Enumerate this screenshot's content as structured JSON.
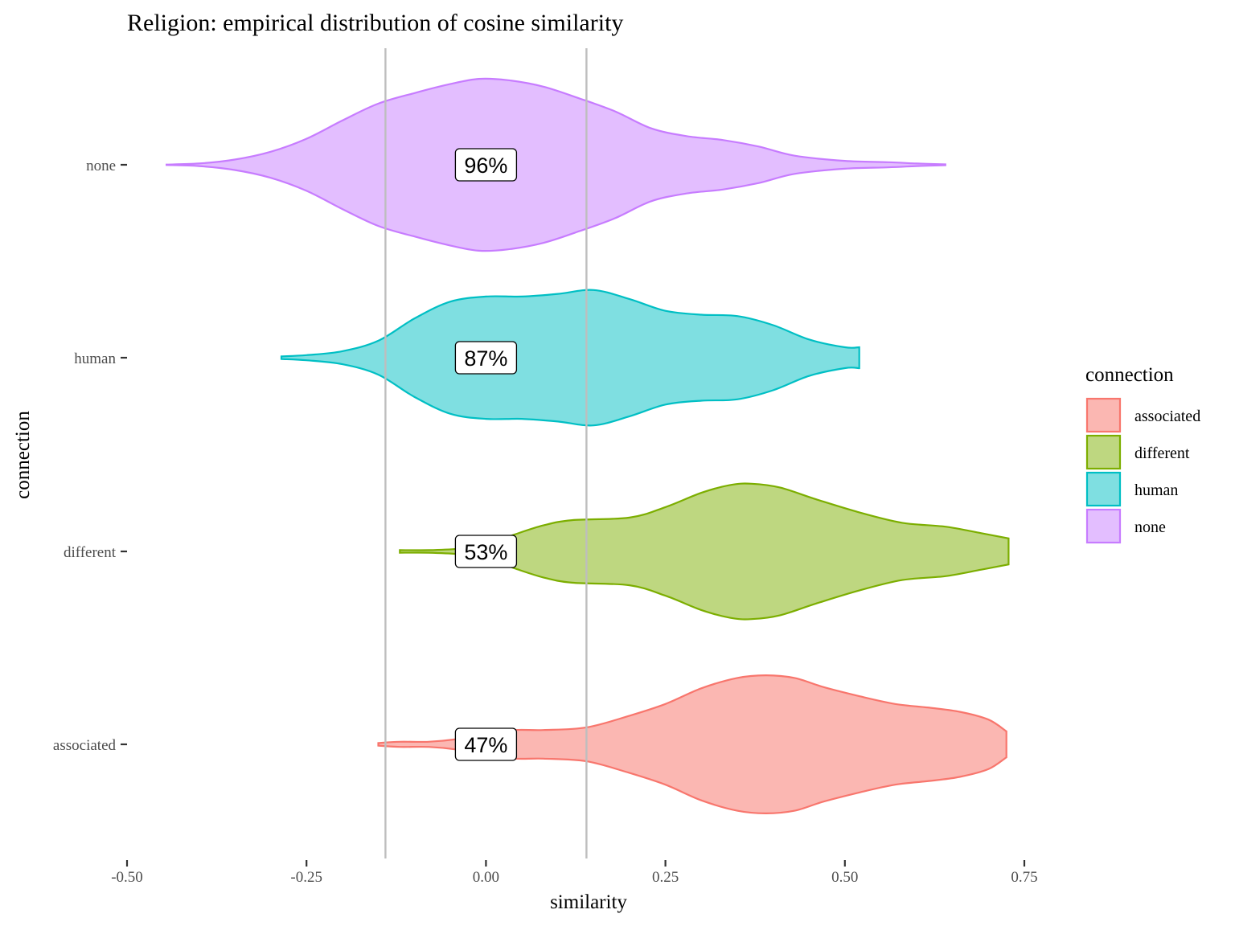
{
  "chart_data": {
    "type": "violin",
    "title": "Religion: empirical distribution of cosine similarity",
    "xlabel": "similarity",
    "ylabel": "connection",
    "xlim": [
      -0.5,
      0.75
    ],
    "x_ticks": [
      -0.5,
      -0.25,
      0.0,
      0.25,
      0.5,
      0.75
    ],
    "x_tick_labels": [
      "-0.50",
      "-0.25",
      "0.00",
      "0.25",
      "0.50",
      "0.75"
    ],
    "categories": [
      "associated",
      "different",
      "human",
      "none"
    ],
    "reference_lines_x": [
      -0.14,
      0.14
    ],
    "grid": false,
    "legend": {
      "title": "connection",
      "position": "right",
      "entries": [
        "associated",
        "different",
        "human",
        "none"
      ]
    },
    "series": [
      {
        "name": "associated",
        "color": "#F8766D",
        "fill": "#FBB7B2",
        "label": "47%",
        "density": [
          [
            -0.15,
            0.01
          ],
          [
            -0.12,
            0.02
          ],
          [
            -0.08,
            0.02
          ],
          [
            -0.04,
            0.04
          ],
          [
            0.0,
            0.08
          ],
          [
            0.04,
            0.11
          ],
          [
            0.08,
            0.11
          ],
          [
            0.14,
            0.13
          ],
          [
            0.2,
            0.22
          ],
          [
            0.25,
            0.31
          ],
          [
            0.3,
            0.43
          ],
          [
            0.35,
            0.51
          ],
          [
            0.39,
            0.53
          ],
          [
            0.43,
            0.51
          ],
          [
            0.47,
            0.44
          ],
          [
            0.52,
            0.37
          ],
          [
            0.57,
            0.31
          ],
          [
            0.62,
            0.28
          ],
          [
            0.66,
            0.25
          ],
          [
            0.7,
            0.19
          ],
          [
            0.725,
            0.1
          ]
        ]
      },
      {
        "name": "different",
        "color": "#7CAE00",
        "fill": "#BED780",
        "label": "53%",
        "density": [
          [
            -0.12,
            0.01
          ],
          [
            -0.08,
            0.01
          ],
          [
            -0.04,
            0.02
          ],
          [
            0.0,
            0.05
          ],
          [
            0.04,
            0.13
          ],
          [
            0.08,
            0.2
          ],
          [
            0.12,
            0.24
          ],
          [
            0.2,
            0.26
          ],
          [
            0.25,
            0.34
          ],
          [
            0.3,
            0.45
          ],
          [
            0.34,
            0.51
          ],
          [
            0.37,
            0.52
          ],
          [
            0.41,
            0.49
          ],
          [
            0.46,
            0.4
          ],
          [
            0.52,
            0.3
          ],
          [
            0.58,
            0.22
          ],
          [
            0.64,
            0.19
          ],
          [
            0.69,
            0.14
          ],
          [
            0.728,
            0.1
          ]
        ]
      },
      {
        "name": "human",
        "color": "#00BFC4",
        "fill": "#7FDFE1",
        "label": "87%",
        "density": [
          [
            -0.285,
            0.01
          ],
          [
            -0.25,
            0.02
          ],
          [
            -0.2,
            0.05
          ],
          [
            -0.15,
            0.13
          ],
          [
            -0.1,
            0.3
          ],
          [
            -0.05,
            0.43
          ],
          [
            0.0,
            0.47
          ],
          [
            0.05,
            0.47
          ],
          [
            0.1,
            0.49
          ],
          [
            0.15,
            0.52
          ],
          [
            0.2,
            0.45
          ],
          [
            0.25,
            0.36
          ],
          [
            0.3,
            0.33
          ],
          [
            0.35,
            0.32
          ],
          [
            0.4,
            0.25
          ],
          [
            0.45,
            0.14
          ],
          [
            0.5,
            0.08
          ],
          [
            0.52,
            0.08
          ]
        ]
      },
      {
        "name": "none",
        "color": "#C77CFF",
        "fill": "#E3BEFF",
        "label": "96%",
        "density": [
          [
            -0.445,
            0.002
          ],
          [
            -0.4,
            0.01
          ],
          [
            -0.35,
            0.04
          ],
          [
            -0.3,
            0.1
          ],
          [
            -0.25,
            0.2
          ],
          [
            -0.2,
            0.34
          ],
          [
            -0.15,
            0.47
          ],
          [
            -0.1,
            0.55
          ],
          [
            -0.05,
            0.62
          ],
          [
            -0.01,
            0.66
          ],
          [
            0.03,
            0.65
          ],
          [
            0.08,
            0.6
          ],
          [
            0.13,
            0.51
          ],
          [
            0.18,
            0.41
          ],
          [
            0.23,
            0.28
          ],
          [
            0.28,
            0.22
          ],
          [
            0.33,
            0.19
          ],
          [
            0.38,
            0.14
          ],
          [
            0.43,
            0.07
          ],
          [
            0.5,
            0.03
          ],
          [
            0.56,
            0.02
          ],
          [
            0.6,
            0.01
          ],
          [
            0.64,
            0.003
          ]
        ]
      }
    ]
  }
}
